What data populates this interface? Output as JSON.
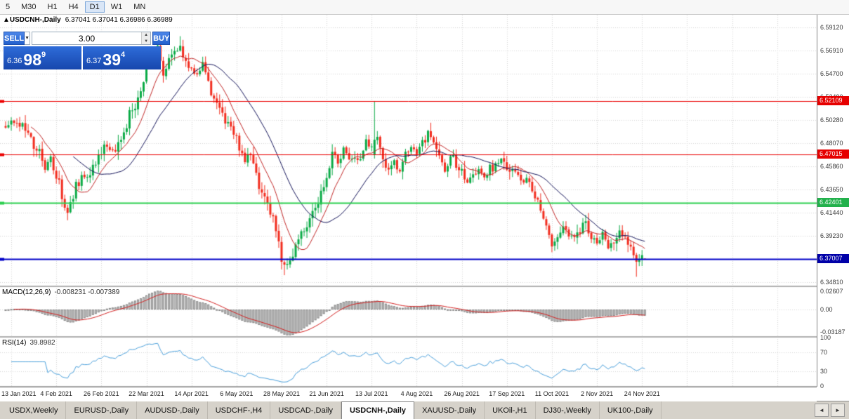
{
  "toolbar": {
    "timeframes": [
      {
        "label": "5"
      },
      {
        "label": "M30"
      },
      {
        "label": "H1"
      },
      {
        "label": "H4"
      },
      {
        "label": "D1",
        "active": true
      },
      {
        "label": "W1"
      },
      {
        "label": "MN"
      }
    ]
  },
  "chart": {
    "window_icon": "▲",
    "title": "USDCNH-,Daily",
    "ohlc_text": "6.37041 6.37041 6.36986 6.36989",
    "trade_panel": {
      "sell_label": "SELL",
      "buy_label": "BUY",
      "volume": "3.00",
      "icons": {
        "up": "▲",
        "down": "▼",
        "dropdown": "▼"
      },
      "sell_price": {
        "prefix": "6.36",
        "big": "98",
        "sup": "9"
      },
      "buy_price": {
        "prefix": "6.37",
        "big": "39",
        "sup": "4"
      }
    },
    "levels": [
      {
        "price": 6.52109,
        "color": "#ec0000",
        "badge": "#e60000",
        "line_width": 1
      },
      {
        "price": 6.47015,
        "color": "#ec0000",
        "badge": "#e60000",
        "line_width": 1
      },
      {
        "price": 6.42401,
        "color": "#2bcf4e",
        "badge": "#22b14c",
        "line_width": 2
      },
      {
        "price": 6.37007,
        "color": "#0000c8",
        "badge": "#0000a8",
        "line_width": 2
      }
    ],
    "y_axis": {
      "max_label": 6.5912,
      "step": 0.0221,
      "count": 12,
      "decimals": 5
    },
    "colors": {
      "bull": "#0bab47",
      "bear": "#f22c1e",
      "ma_fast": "#c22727",
      "ma_slow": "#14145a",
      "grid": "#d6d6d6",
      "axis_text": "#3a3a3a",
      "macd_bar_fill": "#cccccc",
      "macd_bar_stroke": "#8a8a8a",
      "macd_signal": "#d42020",
      "rsi_line": "#4aa0dc",
      "separator": "#b0b0b0",
      "background": "#ffffff",
      "panel_blue": "#2361cd"
    }
  },
  "chart_data": {
    "type": "candlestick",
    "symbol": "USDCNH-",
    "timeframe": "Daily",
    "count": 228,
    "seed": 20211124,
    "label_start": 2,
    "label_every": 16,
    "x_labels": [
      "13 Jan 2021",
      "4 Feb 2021",
      "26 Feb 2021",
      "22 Mar 2021",
      "14 Apr 2021",
      "6 May 2021",
      "28 May 2021",
      "21 Jun 2021",
      "13 Jul 2021",
      "4 Aug 2021",
      "26 Aug 2021",
      "17 Sep 2021",
      "11 Oct 2021",
      "2 Nov 2021",
      "24 Nov 2021"
    ],
    "y_range": {
      "max": 6.6035,
      "min": 6.3445
    },
    "price_waypoints": [
      [
        0,
        6.497
      ],
      [
        4,
        6.503
      ],
      [
        8,
        6.487
      ],
      [
        12,
        6.47
      ],
      [
        14,
        6.458
      ],
      [
        16,
        6.47
      ],
      [
        19,
        6.44
      ],
      [
        22,
        6.414
      ],
      [
        24,
        6.432
      ],
      [
        27,
        6.452
      ],
      [
        30,
        6.448
      ],
      [
        33,
        6.468
      ],
      [
        36,
        6.478
      ],
      [
        39,
        6.472
      ],
      [
        42,
        6.495
      ],
      [
        45,
        6.512
      ],
      [
        48,
        6.532
      ],
      [
        51,
        6.558
      ],
      [
        54,
        6.572
      ],
      [
        56,
        6.55
      ],
      [
        59,
        6.565
      ],
      [
        62,
        6.576
      ],
      [
        65,
        6.552
      ],
      [
        68,
        6.542
      ],
      [
        70,
        6.556
      ],
      [
        73,
        6.53
      ],
      [
        76,
        6.512
      ],
      [
        79,
        6.5
      ],
      [
        82,
        6.483
      ],
      [
        85,
        6.463
      ],
      [
        87,
        6.47
      ],
      [
        90,
        6.442
      ],
      [
        93,
        6.42
      ],
      [
        96,
        6.398
      ],
      [
        98,
        6.372
      ],
      [
        100,
        6.362
      ],
      [
        102,
        6.375
      ],
      [
        105,
        6.392
      ],
      [
        108,
        6.405
      ],
      [
        111,
        6.425
      ],
      [
        114,
        6.452
      ],
      [
        116,
        6.47
      ],
      [
        118,
        6.462
      ],
      [
        120,
        6.477
      ],
      [
        122,
        6.462
      ],
      [
        124,
        6.471
      ],
      [
        126,
        6.468
      ],
      [
        128,
        6.48
      ],
      [
        130,
        6.476
      ],
      [
        132,
        6.486
      ],
      [
        134,
        6.468
      ],
      [
        136,
        6.458
      ],
      [
        138,
        6.464
      ],
      [
        140,
        6.45
      ],
      [
        142,
        6.468
      ],
      [
        144,
        6.478
      ],
      [
        146,
        6.468
      ],
      [
        148,
        6.478
      ],
      [
        150,
        6.49
      ],
      [
        152,
        6.477
      ],
      [
        154,
        6.466
      ],
      [
        156,
        6.456
      ],
      [
        158,
        6.47
      ],
      [
        160,
        6.463
      ],
      [
        162,
        6.455
      ],
      [
        164,
        6.446
      ],
      [
        166,
        6.452
      ],
      [
        168,
        6.458
      ],
      [
        170,
        6.449
      ],
      [
        172,
        6.456
      ],
      [
        174,
        6.463
      ],
      [
        176,
        6.468
      ],
      [
        178,
        6.458
      ],
      [
        180,
        6.452
      ],
      [
        182,
        6.448
      ],
      [
        184,
        6.441
      ],
      [
        186,
        6.446
      ],
      [
        188,
        6.433
      ],
      [
        190,
        6.42
      ],
      [
        192,
        6.398
      ],
      [
        194,
        6.386
      ],
      [
        196,
        6.392
      ],
      [
        198,
        6.403
      ],
      [
        200,
        6.396
      ],
      [
        202,
        6.388
      ],
      [
        204,
        6.398
      ],
      [
        206,
        6.406
      ],
      [
        208,
        6.392
      ],
      [
        210,
        6.386
      ],
      [
        212,
        6.393
      ],
      [
        214,
        6.381
      ],
      [
        216,
        6.389
      ],
      [
        218,
        6.396
      ],
      [
        220,
        6.392
      ],
      [
        222,
        6.386
      ],
      [
        224,
        6.363
      ],
      [
        226,
        6.371
      ],
      [
        227,
        6.3699
      ]
    ],
    "overrides": {
      "22": {
        "l": 6.407
      },
      "54": {
        "h": 6.585
      },
      "62": {
        "h": 6.583
      },
      "99": {
        "l": 6.3545
      },
      "131": {
        "o": 6.47,
        "c": 6.484,
        "h": 6.521,
        "l": 6.466
      },
      "224": {
        "l": 6.353
      },
      "227": {
        "o": 6.37041,
        "h": 6.37041,
        "l": 6.36986,
        "c": 6.36989
      }
    },
    "indicators": {
      "ma_fast_period": 10,
      "ma_slow_period": 25,
      "macd": {
        "header": "MACD(12,26,9)",
        "values": "-0.008231 -0.007389",
        "fast": 12,
        "slow": 26,
        "signal": 9,
        "axis_labels": [
          "0.02607",
          "0.00",
          "-0.03187"
        ],
        "axis_values": [
          0.02607,
          0,
          -0.03187
        ],
        "range": {
          "max": 0.032,
          "min": -0.038
        }
      },
      "rsi": {
        "header": "RSI(14)",
        "value": "39.8982",
        "period": 14,
        "axis_labels": [
          "100",
          "70",
          "30",
          "0"
        ],
        "axis_values": [
          100,
          70,
          30,
          0
        ],
        "dotted_levels": [
          70,
          30
        ],
        "range": {
          "max": 100,
          "min": 0
        }
      }
    }
  },
  "tabbar": {
    "tabs": [
      {
        "label": "USDX,Weekly"
      },
      {
        "label": "EURUSD-,Daily"
      },
      {
        "label": "AUDUSD-,Daily"
      },
      {
        "label": "USDCHF-,H4"
      },
      {
        "label": "USDCAD-,Daily"
      },
      {
        "label": "USDCNH-,Daily",
        "active": true
      },
      {
        "label": "XAUUSD-,Daily"
      },
      {
        "label": "UKOil-,H1"
      },
      {
        "label": "DJ30-,Weekly"
      },
      {
        "label": "UK100-,Daily"
      }
    ],
    "scroll_left": "◄",
    "scroll_right": "►"
  }
}
